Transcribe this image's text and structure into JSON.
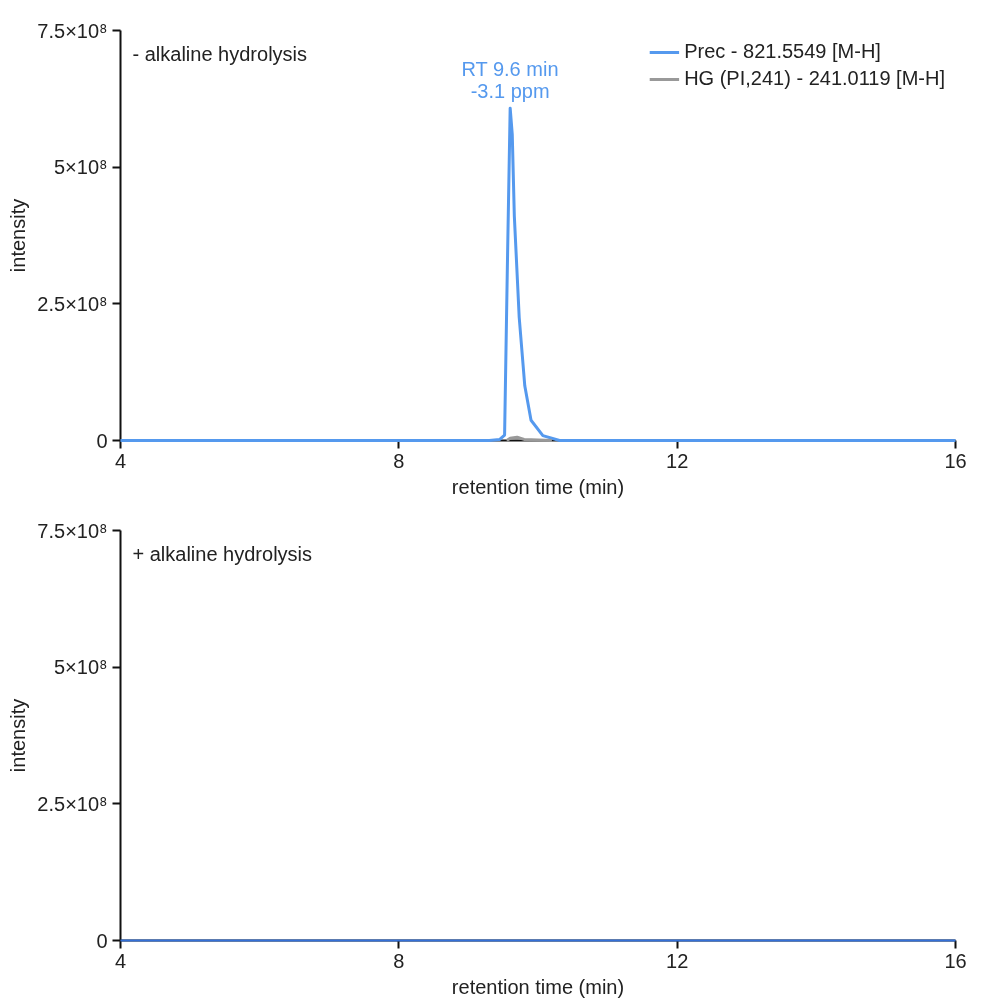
{
  "chart_data": [
    {
      "type": "line",
      "xlabel": "retention time (min)",
      "ylabel": "intensity",
      "xlim": [
        4,
        16
      ],
      "ylim": [
        0,
        750000000
      ],
      "xticks": [
        4,
        8,
        12,
        16
      ],
      "yticks": [
        0,
        {
          "value": 250000000,
          "label": "2.5×10⁸"
        },
        {
          "value": 500000000,
          "label": "5×10⁸"
        },
        {
          "value": 750000000,
          "label": "7.5×10⁸"
        }
      ],
      "grid": false,
      "legend": "top right",
      "line_style": "solid",
      "marker": "none",
      "annotations": [
        "- alkaline hydrolysis",
        {
          "text": "RT 9.6 min\n-3.1 ppm",
          "x": 9.6,
          "y": 608000000
        }
      ],
      "series": [
        {
          "name": "Prec - 821.5549 [M-H]",
          "color": "#5599ee",
          "x": [
            4,
            9.3,
            9.45,
            9.52,
            9.56,
            9.6,
            9.63,
            9.66,
            9.73,
            9.81,
            9.9,
            10.07,
            10.31,
            16
          ],
          "values": [
            0,
            0,
            2000000,
            10000000,
            320000000,
            608000000,
            560000000,
            410000000,
            225000000,
            100000000,
            37000000,
            9000000,
            0,
            0
          ]
        },
        {
          "name": "HG (PI,241) - 241.0119 [M-H]",
          "color": "#999999",
          "x": [
            9.55,
            9.6,
            9.7,
            9.8,
            10.0,
            10.2
          ],
          "values": [
            0,
            4000000,
            6000000,
            2000000,
            1000000,
            0
          ]
        }
      ]
    },
    {
      "type": "line",
      "xlabel": "retention time (min)",
      "ylabel": "intensity",
      "xlim": [
        4,
        16
      ],
      "ylim": [
        0,
        750000000
      ],
      "xticks": [
        4,
        8,
        12,
        16
      ],
      "yticks": [
        0,
        {
          "value": 250000000,
          "label": "2.5×10⁸"
        },
        {
          "value": 500000000,
          "label": "5×10⁸"
        },
        {
          "value": 750000000,
          "label": "7.5×10⁸"
        }
      ],
      "grid": false,
      "legend": false,
      "line_style": "solid",
      "marker": "none",
      "annotations": [
        "+ alkaline hydrolysis"
      ],
      "series": [
        {
          "color": "#3370d8",
          "x": [
            4,
            16
          ],
          "values": [
            0,
            0
          ]
        }
      ]
    }
  ]
}
